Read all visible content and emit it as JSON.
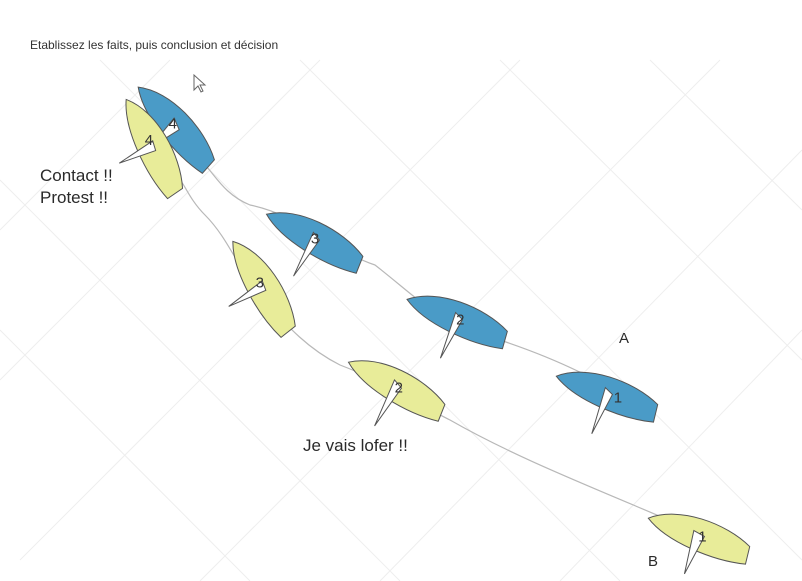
{
  "instruction": "Etablissez les faits, puis conclusion et décision",
  "labels": {
    "boat_a": "A",
    "boat_b": "B"
  },
  "callouts": {
    "contact": "Contact !!",
    "protest": "Protest !!",
    "lofer": "Je vais lofer !!"
  },
  "colors": {
    "boat_a": "#4a9bc7",
    "boat_b": "#e8ec99",
    "outline": "#555555",
    "sail": "#ffffff",
    "grid": "#eeeeee",
    "track": "#b8b8b8"
  },
  "boats_a": [
    {
      "num": "1"
    },
    {
      "num": "2"
    },
    {
      "num": "3"
    },
    {
      "num": "4"
    }
  ],
  "boats_b": [
    {
      "num": "1"
    },
    {
      "num": "2"
    },
    {
      "num": "3"
    },
    {
      "num": "4"
    }
  ],
  "icons": {
    "cursor": "mouse-cursor-icon"
  }
}
